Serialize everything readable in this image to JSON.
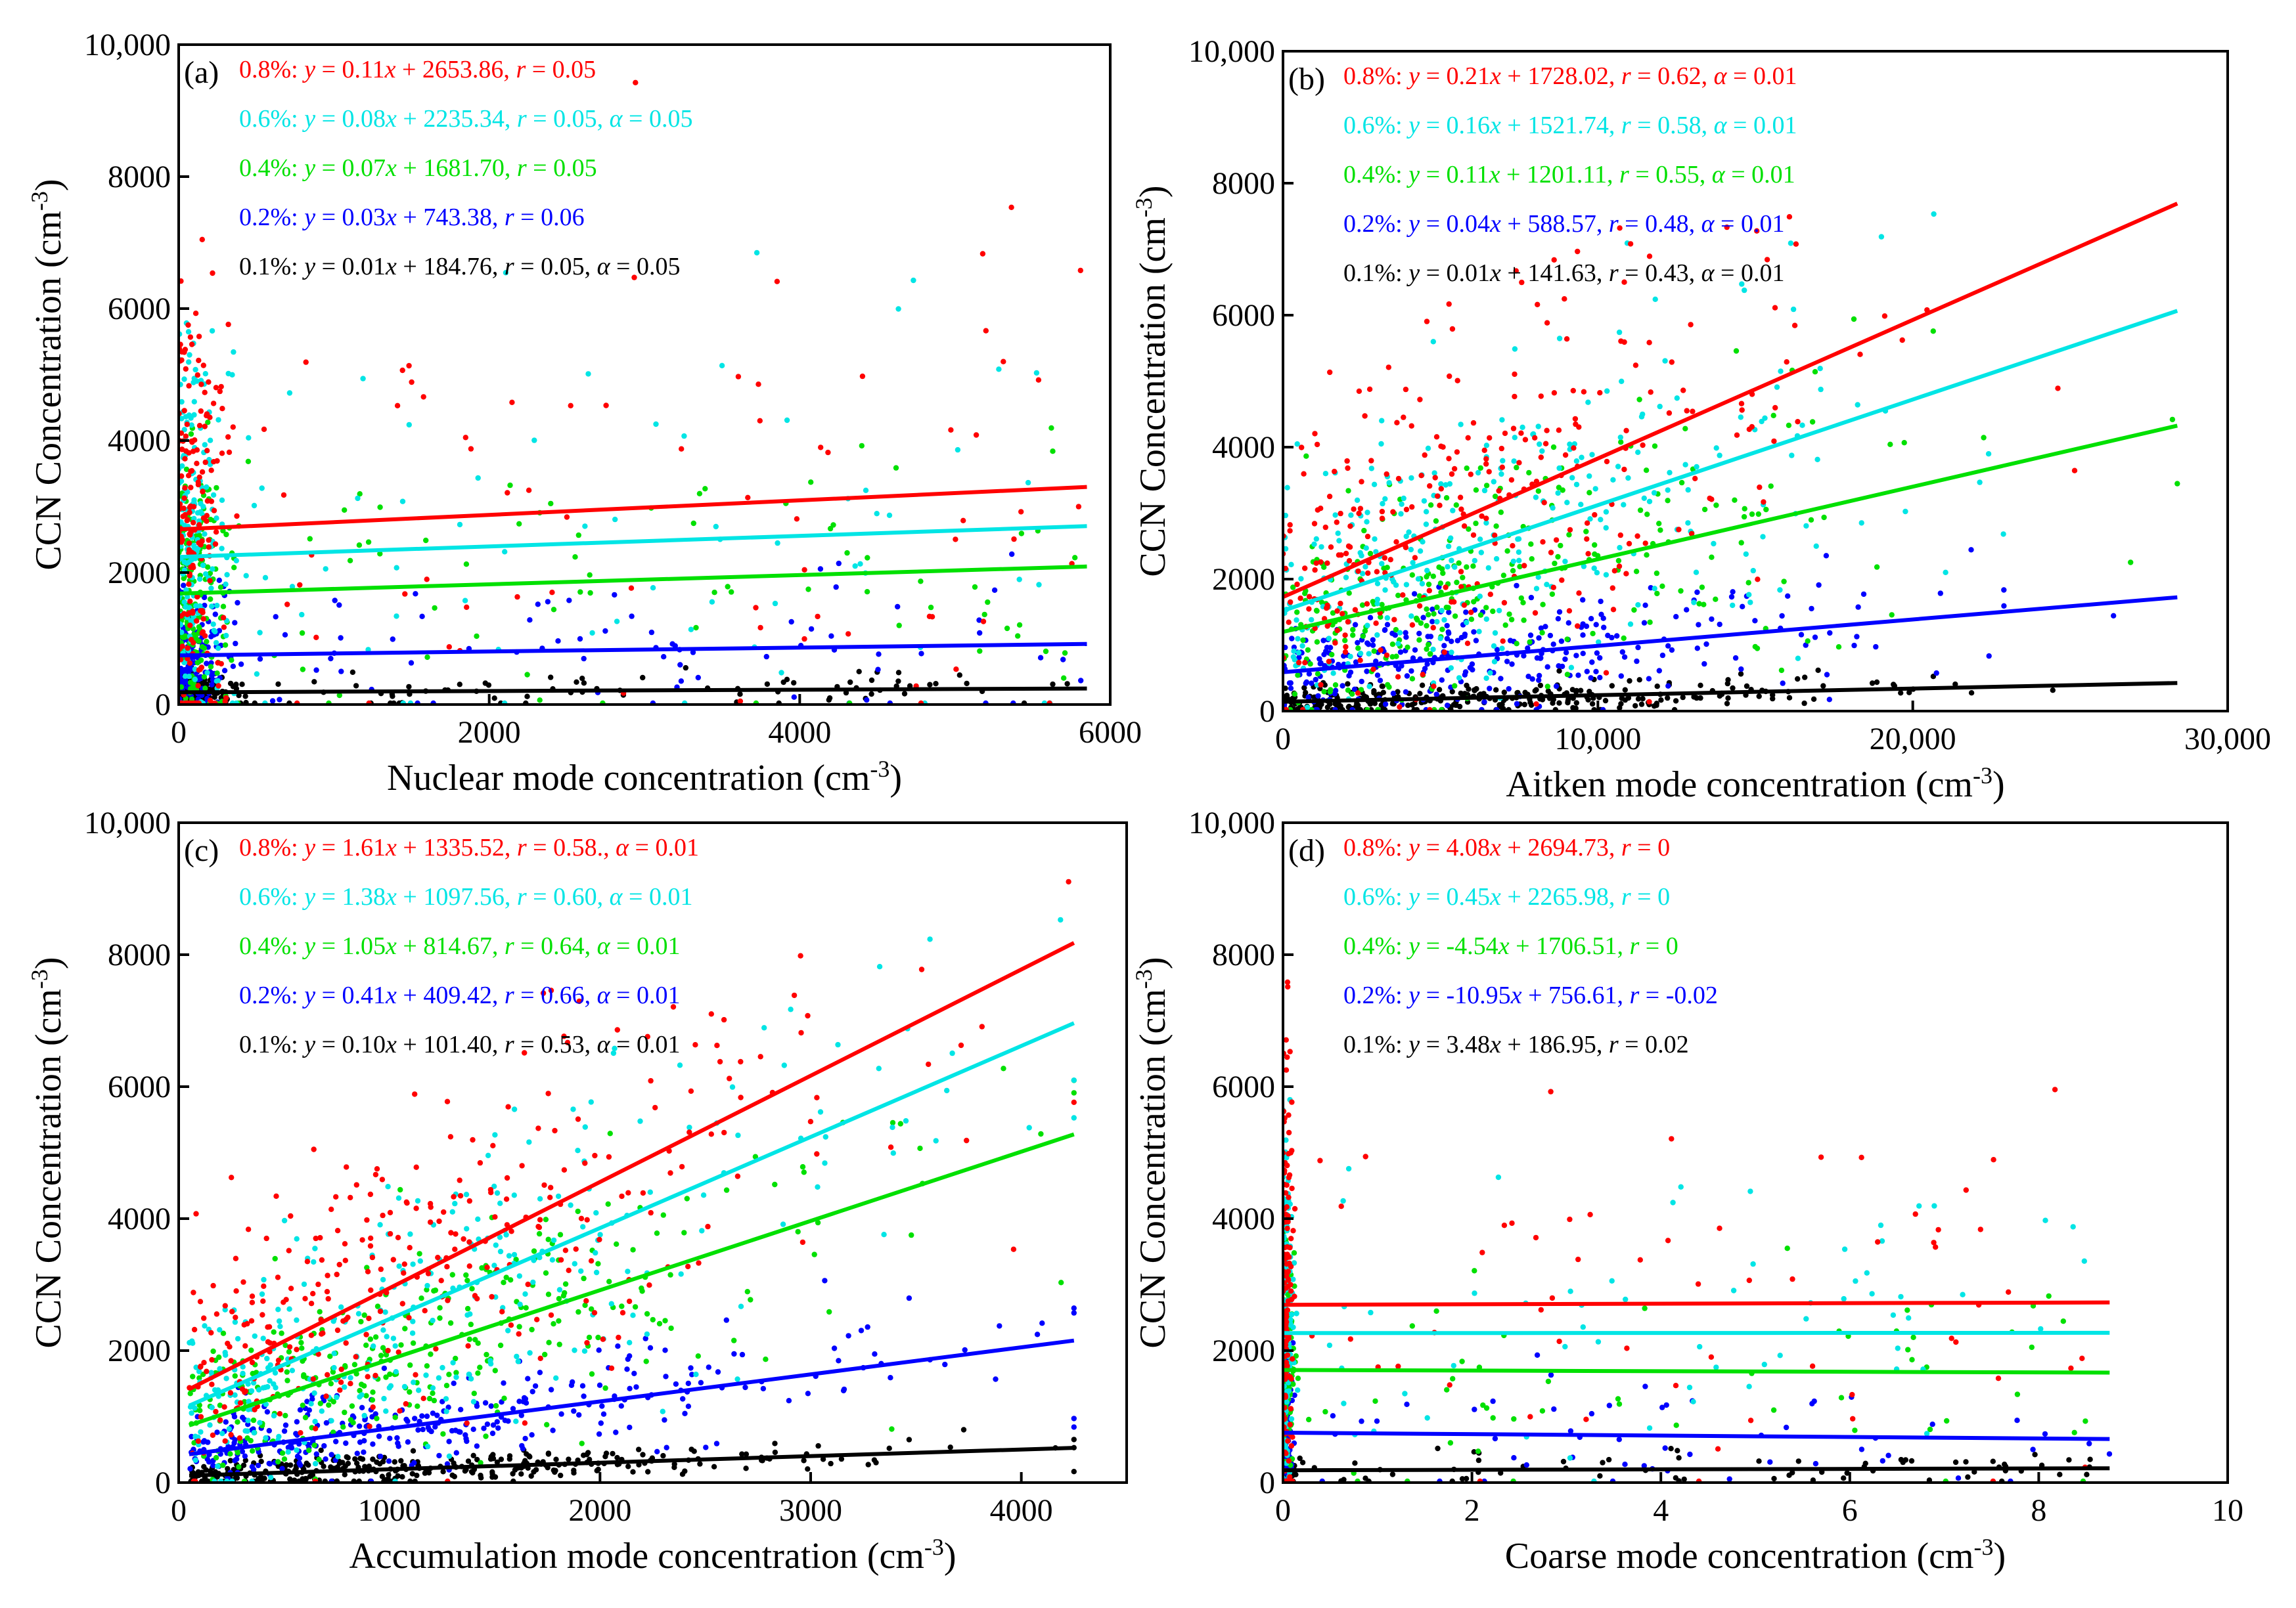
{
  "chart_data": [
    {
      "type": "scatter",
      "panel_label": "(a)",
      "xlabel": {
        "text": "Nuclear mode concentration (cm",
        "sup": "-3",
        "close": ")"
      },
      "ylabel": {
        "text": "CCN Concentration (cm",
        "sup": "-3",
        "close": ")"
      },
      "xlim": [
        0,
        6000
      ],
      "ylim": [
        0,
        10000
      ],
      "xticks": [
        0,
        2000,
        4000,
        6000
      ],
      "xtick_labels": [
        "0",
        "2000",
        "4000",
        "6000"
      ],
      "yticks": [
        0,
        2000,
        4000,
        6000,
        8000,
        10000
      ],
      "ytick_labels": [
        "0",
        "2000",
        "4000",
        "6000",
        "8000",
        "10,000"
      ],
      "fit_x_range": [
        0,
        5850
      ],
      "series": [
        {
          "name": "0.8%",
          "color": "#ff0000",
          "slope": 0.11,
          "intercept": 2653.86,
          "equation": {
            "ss": "0.8%: ",
            "slope": "0.11",
            "intercept": "2653.86",
            "r": "0.05",
            "alpha": ""
          }
        },
        {
          "name": "0.6%",
          "color": "#00e5e5",
          "slope": 0.08,
          "intercept": 2235.34,
          "equation": {
            "ss": "0.6%: ",
            "slope": "0.08",
            "intercept": "2235.34",
            "r": "0.05",
            "alpha": "0.05"
          }
        },
        {
          "name": "0.4%",
          "color": "#00e000",
          "slope": 0.07,
          "intercept": 1681.7,
          "equation": {
            "ss": "0.4%: ",
            "slope": "0.07",
            "intercept": "1681.70",
            "r": "0.05",
            "alpha": ""
          }
        },
        {
          "name": "0.2%",
          "color": "#0000ff",
          "slope": 0.03,
          "intercept": 743.38,
          "equation": {
            "ss": "0.2%: ",
            "slope": "0.03",
            "intercept": "743.38",
            "r": "0.06",
            "alpha": ""
          }
        },
        {
          "name": "0.1%",
          "color": "#000000",
          "slope": 0.01,
          "intercept": 184.76,
          "equation": {
            "ss": "0.1%: ",
            "slope": "0.01",
            "intercept": "184.76",
            "r": "0.05",
            "alpha": "0.05"
          }
        }
      ]
    },
    {
      "type": "scatter",
      "panel_label": "(b)",
      "xlabel": {
        "text": "Aitken mode concentration (cm",
        "sup": "-3",
        "close": ")"
      },
      "ylabel": {
        "text": "CCN Concentration (cm",
        "sup": "-3",
        "close": ")"
      },
      "xlim": [
        0,
        30000
      ],
      "ylim": [
        0,
        10000
      ],
      "xticks": [
        0,
        10000,
        20000,
        30000
      ],
      "xtick_labels": [
        "0",
        "10,000",
        "20,000",
        "30,000"
      ],
      "yticks": [
        0,
        2000,
        4000,
        6000,
        8000,
        10000
      ],
      "ytick_labels": [
        "0",
        "2000",
        "4000",
        "6000",
        "8000",
        "10,000"
      ],
      "fit_x_range": [
        0,
        28400
      ],
      "series": [
        {
          "name": "0.8%",
          "color": "#ff0000",
          "slope": 0.21,
          "intercept": 1728.02,
          "equation": {
            "ss": "0.8%: ",
            "slope": "0.21",
            "intercept": "1728.02",
            "r": "0.62",
            "alpha": "0.01"
          }
        },
        {
          "name": "0.6%",
          "color": "#00e5e5",
          "slope": 0.16,
          "intercept": 1521.74,
          "equation": {
            "ss": "0.6%: ",
            "slope": "0.16",
            "intercept": "1521.74",
            "r": "0.58",
            "alpha": "0.01"
          }
        },
        {
          "name": "0.4%",
          "color": "#00e000",
          "slope": 0.11,
          "intercept": 1201.11,
          "equation": {
            "ss": "0.4%: ",
            "slope": "0.11",
            "intercept": "1201.11",
            "r": "0.55",
            "alpha": "0.01"
          }
        },
        {
          "name": "0.2%",
          "color": "#0000ff",
          "slope": 0.04,
          "intercept": 588.57,
          "equation": {
            "ss": "0.2%: ",
            "slope": "0.04",
            "intercept": "588.57",
            "r": "0.48",
            "alpha": "0.01"
          }
        },
        {
          "name": "0.1%",
          "color": "#000000",
          "slope": 0.01,
          "intercept": 141.63,
          "equation": {
            "ss": "0.1%: ",
            "slope": "0.01",
            "intercept": "141.63",
            "r": "0.43",
            "alpha": "0.01"
          }
        }
      ]
    },
    {
      "type": "scatter",
      "panel_label": "(c)",
      "xlabel": {
        "text": "Accumulation mode concentration (cm",
        "sup": "-3",
        "close": ")"
      },
      "ylabel": {
        "text": "CCN Concentration (cm",
        "sup": "-3",
        "close": ")"
      },
      "xlim": [
        0,
        4500
      ],
      "ylim": [
        0,
        10000
      ],
      "xticks": [
        0,
        1000,
        2000,
        3000,
        4000
      ],
      "xtick_labels": [
        "0",
        "1000",
        "2000",
        "3000",
        "4000"
      ],
      "yticks": [
        0,
        2000,
        4000,
        6000,
        8000,
        10000
      ],
      "ytick_labels": [
        "0",
        "2000",
        "4000",
        "6000",
        "8000",
        "10,000"
      ],
      "fit_x_range": [
        50,
        4250
      ],
      "series": [
        {
          "name": "0.8%",
          "color": "#ff0000",
          "slope": 1.61,
          "intercept": 1335.52,
          "equation": {
            "ss": "0.8%: ",
            "slope": "1.61",
            "intercept": "1335.52",
            "r": "0.58.",
            "alpha": "0.01"
          }
        },
        {
          "name": "0.6%",
          "color": "#00e5e5",
          "slope": 1.38,
          "intercept": 1097.56,
          "equation": {
            "ss": "0.6%: ",
            "slope": "1.38",
            "intercept": "1097.56",
            "r": "0.60",
            "alpha": "0.01"
          }
        },
        {
          "name": "0.4%",
          "color": "#00e000",
          "slope": 1.05,
          "intercept": 814.67,
          "equation": {
            "ss": "0.4%: ",
            "slope": "1.05",
            "intercept": "814.67",
            "r": "0.64",
            "alpha": "0.01"
          }
        },
        {
          "name": "0.2%",
          "color": "#0000ff",
          "slope": 0.41,
          "intercept": 409.42,
          "equation": {
            "ss": "0.2%: ",
            "slope": "0.41",
            "intercept": "409.42",
            "r": "0.66",
            "alpha": "0.01"
          }
        },
        {
          "name": "0.1%",
          "color": "#000000",
          "slope": 0.1,
          "intercept": 101.4,
          "equation": {
            "ss": "0.1%: ",
            "slope": "0.10",
            "intercept": "101.40",
            "r": "0.53",
            "alpha": "0.01"
          }
        }
      ]
    },
    {
      "type": "scatter",
      "panel_label": "(d)",
      "xlabel": {
        "text": "Coarse mode concentration (cm",
        "sup": "-3",
        "close": ")"
      },
      "ylabel": {
        "text": "CCN Concentration (cm",
        "sup": "-3",
        "close": ")"
      },
      "xlim": [
        0,
        10
      ],
      "ylim": [
        0,
        10000
      ],
      "xticks": [
        0,
        2,
        4,
        6,
        8,
        10
      ],
      "xtick_labels": [
        "0",
        "2",
        "4",
        "6",
        "8",
        "10"
      ],
      "yticks": [
        0,
        2000,
        4000,
        6000,
        8000,
        10000
      ],
      "ytick_labels": [
        "0",
        "2000",
        "4000",
        "6000",
        "8000",
        "10,000"
      ],
      "fit_x_range": [
        0,
        8.75
      ],
      "series": [
        {
          "name": "0.8%",
          "color": "#ff0000",
          "slope": 4.08,
          "intercept": 2694.73,
          "equation": {
            "ss": "0.8%: ",
            "slope": "4.08",
            "intercept": "2694.73",
            "r": "0",
            "alpha": ""
          }
        },
        {
          "name": "0.6%",
          "color": "#00e5e5",
          "slope": 0.45,
          "intercept": 2265.98,
          "equation": {
            "ss": "0.6%: ",
            "slope": "0.45",
            "intercept": "2265.98",
            "r": "0",
            "alpha": ""
          }
        },
        {
          "name": "0.4%",
          "color": "#00e000",
          "slope": -4.54,
          "intercept": 1706.51,
          "equation": {
            "ss": "0.4%: ",
            "slope": "-4.54",
            "intercept": "1706.51",
            "r": "0",
            "alpha": ""
          }
        },
        {
          "name": "0.2%",
          "color": "#0000ff",
          "slope": -10.95,
          "intercept": 756.61,
          "equation": {
            "ss": "0.2%: ",
            "slope": "-10.95",
            "intercept": "756.61",
            "r": "-0.02",
            "alpha": ""
          }
        },
        {
          "name": "0.1%",
          "color": "#000000",
          "slope": 3.48,
          "intercept": 186.95,
          "equation": {
            "ss": "0.1%: ",
            "slope": "3.48",
            "intercept": "186.95",
            "r": "0.02",
            "alpha": ""
          }
        }
      ]
    }
  ]
}
